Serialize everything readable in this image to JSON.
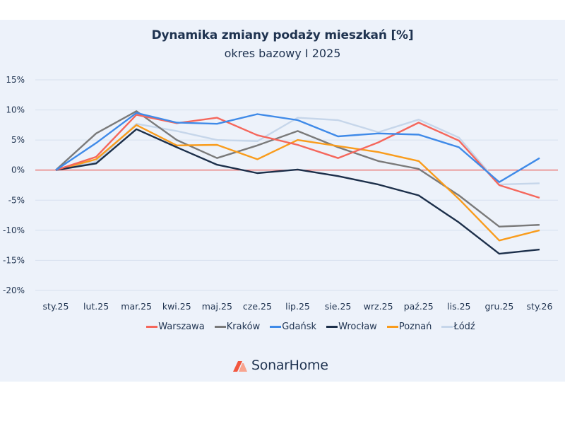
{
  "chart_data": {
    "type": "line",
    "title": "Dynamika zmiany podaży mieszkań [%]",
    "subtitle": "okres bazowy I 2025",
    "xlabel": "",
    "ylabel": "",
    "ylim": [
      -20,
      15
    ],
    "yticks": [
      15,
      10,
      5,
      0,
      -5,
      -10,
      -15,
      -20
    ],
    "ytick_labels": [
      "15%",
      "10%",
      "5%",
      "0%",
      "-5%",
      "-10%",
      "-15%",
      "-20%"
    ],
    "grid": true,
    "baseline": 0,
    "baseline_color": "#e8403a",
    "legend_position": "bottom",
    "categories": [
      "sty.25",
      "lut.25",
      "mar.25",
      "kwi.25",
      "maj.25",
      "cze.25",
      "lip.25",
      "sie.25",
      "wrz.25",
      "paź.25",
      "lis.25",
      "gru.25",
      "sty.26"
    ],
    "series": [
      {
        "name": "Warszawa",
        "color": "#f5675c",
        "values": [
          0,
          2.2,
          9.2,
          7.8,
          8.7,
          5.8,
          4.2,
          2.0,
          4.6,
          7.9,
          4.9,
          -2.5,
          -4.6
        ]
      },
      {
        "name": "Kraków",
        "color": "#7a7a7a",
        "values": [
          0,
          6.1,
          9.8,
          5.0,
          2.0,
          4.1,
          6.5,
          3.8,
          1.5,
          0.2,
          -4.2,
          -9.4,
          -9.1
        ]
      },
      {
        "name": "Gdańsk",
        "color": "#3f8ae8",
        "values": [
          0,
          4.5,
          9.5,
          7.9,
          7.7,
          9.3,
          8.3,
          5.6,
          6.1,
          5.9,
          3.8,
          -2.0,
          2.0
        ]
      },
      {
        "name": "Wrocław",
        "color": "#1c2f4a",
        "values": [
          0,
          1.1,
          6.8,
          3.8,
          0.9,
          -0.5,
          0.1,
          -1.0,
          -2.4,
          -4.2,
          -8.7,
          -13.9,
          -13.2
        ]
      },
      {
        "name": "Poznań",
        "color": "#f99c1c",
        "values": [
          0,
          1.8,
          7.5,
          4.1,
          4.2,
          1.8,
          5.0,
          4.0,
          3.0,
          1.5,
          -4.8,
          -11.7,
          -10.0
        ]
      },
      {
        "name": "Łódź",
        "color": "#c6d6ea",
        "values": [
          0,
          1.4,
          7.7,
          6.5,
          5.0,
          4.8,
          8.7,
          8.3,
          6.3,
          8.4,
          5.4,
          -2.4,
          -2.2
        ]
      }
    ]
  },
  "brand": {
    "name": "SonarHome",
    "logo_colors": [
      "#f2573f",
      "#f8a48f"
    ]
  }
}
